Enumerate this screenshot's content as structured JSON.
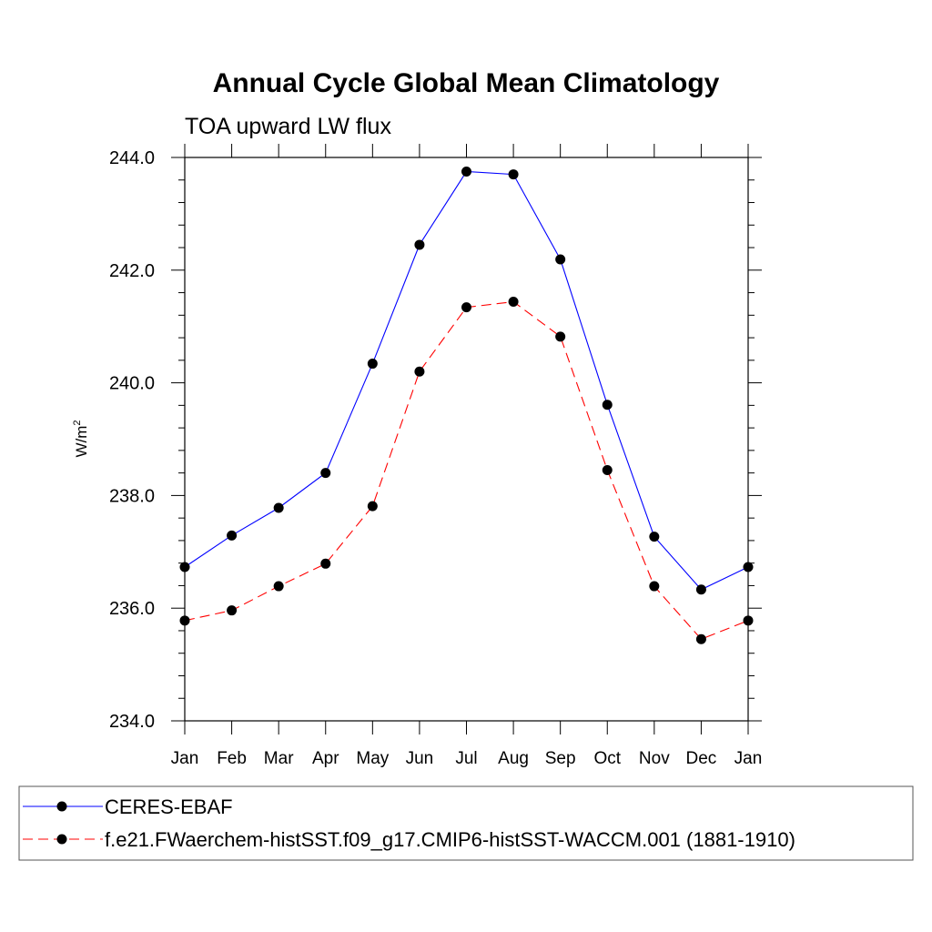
{
  "chart_data": {
    "type": "line",
    "title": "Annual Cycle Global Mean Climatology",
    "subtitle": "TOA upward LW flux",
    "ylabel": "W/m",
    "ylabel_superscript": "2",
    "ylim": [
      234.0,
      244.0
    ],
    "yticks": [
      "234.0",
      "236.0",
      "238.0",
      "240.0",
      "242.0",
      "244.0"
    ],
    "categories": [
      "Jan",
      "Feb",
      "Mar",
      "Apr",
      "May",
      "Jun",
      "Jul",
      "Aug",
      "Sep",
      "Oct",
      "Nov",
      "Dec",
      "Jan"
    ],
    "grid": false,
    "legend_position": "bottom",
    "series": [
      {
        "name": "CERES-EBAF",
        "color": "#0000ff",
        "style": "solid",
        "marker": "filled-circle",
        "values": [
          236.73,
          237.29,
          237.78,
          238.4,
          240.34,
          242.45,
          243.75,
          243.7,
          242.19,
          239.61,
          237.27,
          236.33,
          236.73
        ]
      },
      {
        "name": "f.e21.FWaerchem-histSST.f09_g17.CMIP6-histSST-WACCM.001 (1881-1910)",
        "color": "#ff0000",
        "style": "dashed",
        "marker": "filled-circle",
        "values": [
          235.78,
          235.96,
          236.39,
          236.79,
          237.81,
          240.2,
          241.34,
          241.44,
          240.82,
          238.45,
          236.39,
          235.45,
          235.78
        ]
      }
    ]
  }
}
